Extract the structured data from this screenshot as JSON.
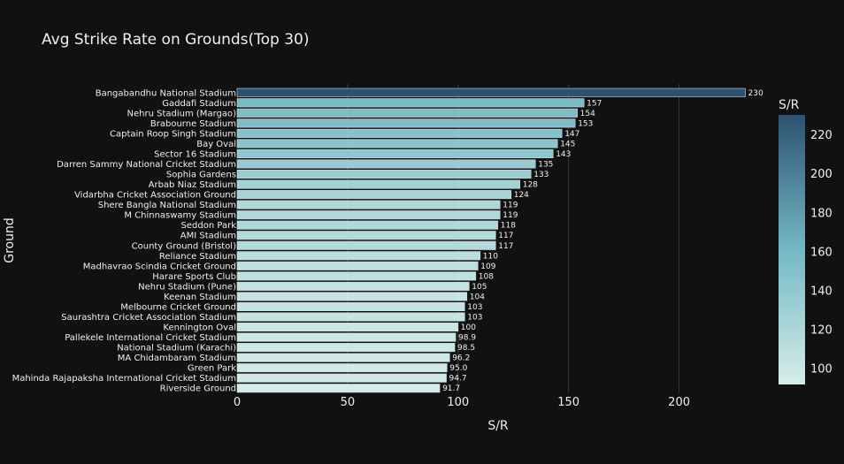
{
  "chart_data": {
    "type": "bar",
    "orientation": "horizontal",
    "title": "Avg Strike Rate on Grounds(Top 30)",
    "xlabel": "S/R",
    "ylabel": "Ground",
    "xlim": [
      0,
      245
    ],
    "x_ticks": [
      0,
      50,
      100,
      150,
      200
    ],
    "grid": true,
    "colorbar": {
      "title": "S/R",
      "range": [
        91.7,
        230
      ],
      "ticks": [
        100,
        120,
        140,
        160,
        180,
        200,
        220
      ],
      "colors": [
        "#d4ede9",
        "#74b8c4",
        "#2c5272"
      ]
    },
    "categories": [
      "Bangabandhu National Stadium",
      "Gaddafi Stadium",
      "Nehru Stadium (Margao)",
      "Brabourne Stadium",
      "Captain Roop Singh Stadium",
      "Bay Oval",
      "Sector 16 Stadium",
      "Darren Sammy National Cricket Stadium",
      "Sophia Gardens",
      "Arbab Niaz Stadium",
      "Vidarbha Cricket Association Ground",
      "Shere Bangla National Stadium",
      "M Chinnaswamy Stadium",
      "Seddon Park",
      "AMI Stadium",
      "County Ground (Bristol)",
      "Reliance Stadium",
      "Madhavrao Scindia Cricket Ground",
      "Harare Sports Club",
      "Nehru Stadium (Pune)",
      "Keenan Stadium",
      "Melbourne Cricket Ground",
      "Saurashtra Cricket Association Stadium",
      "Kennington Oval",
      "Pallekele International Cricket Stadium",
      "National Stadium (Karachi)",
      "MA Chidambaram Stadium",
      "Green Park",
      "Mahinda Rajapaksha International Cricket Stadium",
      "Riverside Ground"
    ],
    "values": [
      230,
      157,
      154,
      153,
      147,
      145,
      143,
      135,
      133,
      128,
      124,
      119,
      119,
      118,
      117,
      117,
      110,
      109,
      108,
      105,
      104,
      103,
      103,
      100,
      98.9,
      98.5,
      96.2,
      95.0,
      94.7,
      91.7
    ],
    "value_labels": [
      "230",
      "157",
      "154",
      "153",
      "147",
      "145",
      "143",
      "135",
      "133",
      "128",
      "124",
      "119",
      "119",
      "118",
      "117",
      "117",
      "110",
      "109",
      "108",
      "105",
      "104",
      "103",
      "103",
      "100",
      "98.9",
      "98.5",
      "96.2",
      "95.0",
      "94.7",
      "91.7"
    ]
  }
}
